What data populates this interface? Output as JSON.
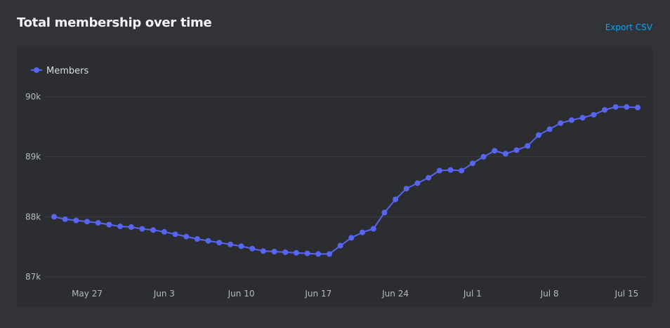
{
  "header": {
    "title": "Total membership over time",
    "export_label": "Export CSV"
  },
  "colors": {
    "series": "#5865f2",
    "grid": "#3a3c42",
    "background": "#313338",
    "card": "#2b2d31",
    "link": "#00a8fc"
  },
  "chart_data": {
    "type": "line",
    "legend": {
      "placement": "top-left",
      "entries": [
        "Members"
      ]
    },
    "grid": true,
    "ylim": [
      87000,
      90000
    ],
    "yticks": [
      87000,
      88000,
      89000,
      90000
    ],
    "ytick_labels": [
      "87k",
      "88k",
      "89k",
      "90k"
    ],
    "xticks": [
      "2024-05-27",
      "2024-06-03",
      "2024-06-10",
      "2024-06-17",
      "2024-06-24",
      "2024-07-01",
      "2024-07-08",
      "2024-07-15"
    ],
    "xtick_labels": [
      "May 27",
      "Jun 3",
      "Jun 10",
      "Jun 17",
      "Jun 24",
      "Jul 1",
      "Jul 8",
      "Jul 15"
    ],
    "series": [
      {
        "name": "Members",
        "points": [
          [
            "2024-05-24",
            88000
          ],
          [
            "2024-05-25",
            87960
          ],
          [
            "2024-05-26",
            87940
          ],
          [
            "2024-05-27",
            87920
          ],
          [
            "2024-05-28",
            87900
          ],
          [
            "2024-05-29",
            87870
          ],
          [
            "2024-05-30",
            87840
          ],
          [
            "2024-05-31",
            87830
          ],
          [
            "2024-06-01",
            87800
          ],
          [
            "2024-06-02",
            87780
          ],
          [
            "2024-06-03",
            87750
          ],
          [
            "2024-06-04",
            87710
          ],
          [
            "2024-06-05",
            87670
          ],
          [
            "2024-06-06",
            87630
          ],
          [
            "2024-06-07",
            87600
          ],
          [
            "2024-06-08",
            87570
          ],
          [
            "2024-06-09",
            87540
          ],
          [
            "2024-06-10",
            87510
          ],
          [
            "2024-06-11",
            87470
          ],
          [
            "2024-06-12",
            87430
          ],
          [
            "2024-06-13",
            87420
          ],
          [
            "2024-06-14",
            87410
          ],
          [
            "2024-06-15",
            87400
          ],
          [
            "2024-06-16",
            87390
          ],
          [
            "2024-06-17",
            87380
          ],
          [
            "2024-06-18",
            87380
          ],
          [
            "2024-06-19",
            87520
          ],
          [
            "2024-06-20",
            87650
          ],
          [
            "2024-06-21",
            87740
          ],
          [
            "2024-06-22",
            87800
          ],
          [
            "2024-06-23",
            88070
          ],
          [
            "2024-06-24",
            88290
          ],
          [
            "2024-06-25",
            88470
          ],
          [
            "2024-06-26",
            88560
          ],
          [
            "2024-06-27",
            88650
          ],
          [
            "2024-06-28",
            88770
          ],
          [
            "2024-06-29",
            88780
          ],
          [
            "2024-06-30",
            88770
          ],
          [
            "2024-07-01",
            88890
          ],
          [
            "2024-07-02",
            89000
          ],
          [
            "2024-07-03",
            89100
          ],
          [
            "2024-07-04",
            89050
          ],
          [
            "2024-07-05",
            89110
          ],
          [
            "2024-07-06",
            89180
          ],
          [
            "2024-07-07",
            89360
          ],
          [
            "2024-07-08",
            89460
          ],
          [
            "2024-07-09",
            89560
          ],
          [
            "2024-07-10",
            89610
          ],
          [
            "2024-07-11",
            89650
          ],
          [
            "2024-07-12",
            89700
          ],
          [
            "2024-07-13",
            89780
          ],
          [
            "2024-07-14",
            89830
          ],
          [
            "2024-07-15",
            89830
          ],
          [
            "2024-07-16",
            89820
          ]
        ]
      }
    ]
  }
}
